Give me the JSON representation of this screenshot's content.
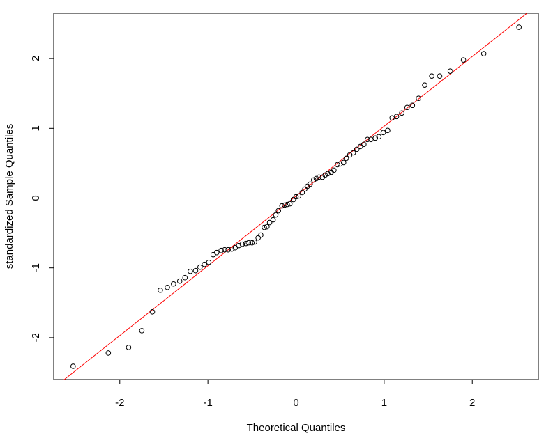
{
  "chart_data": {
    "type": "scatter",
    "title": "",
    "xlabel": "Theoretical Quantiles",
    "ylabel": "standardized Sample Quantiles",
    "xlim": [
      -2.75,
      2.75
    ],
    "ylim": [
      -2.6,
      2.65
    ],
    "x_ticks": [
      -2,
      -1,
      0,
      1,
      2
    ],
    "x_tick_labels": [
      "-2",
      "-1",
      "0",
      "1",
      "2"
    ],
    "y_ticks": [
      -2,
      -1,
      0,
      1,
      2
    ],
    "y_tick_labels": [
      "-2",
      "-1",
      "0",
      "1",
      "2"
    ],
    "grid": false,
    "legend": "none",
    "colors": {
      "points": "#000000",
      "reference_line": "#ff0000",
      "frame": "#000000"
    },
    "reference_line": {
      "intercept": 0.03,
      "slope": 1.0
    },
    "series": [
      {
        "marker": "open-circle",
        "x": [
          -2.53,
          -2.13,
          -1.9,
          -1.75,
          -1.63,
          -1.54,
          -1.46,
          -1.39,
          -1.32,
          -1.26,
          -1.2,
          -1.14,
          -1.09,
          -1.04,
          -0.99,
          -0.94,
          -0.9,
          -0.85,
          -0.81,
          -0.77,
          -0.73,
          -0.69,
          -0.65,
          -0.61,
          -0.57,
          -0.54,
          -0.5,
          -0.47,
          -0.43,
          -0.4,
          -0.36,
          -0.33,
          -0.3,
          -0.26,
          -0.23,
          -0.2,
          -0.16,
          -0.13,
          -0.1,
          -0.07,
          -0.03,
          0.0,
          0.03,
          0.07,
          0.1,
          0.13,
          0.16,
          0.2,
          0.23,
          0.26,
          0.3,
          0.33,
          0.36,
          0.4,
          0.43,
          0.47,
          0.5,
          0.54,
          0.57,
          0.61,
          0.65,
          0.69,
          0.73,
          0.77,
          0.81,
          0.85,
          0.9,
          0.94,
          0.99,
          1.04,
          1.09,
          1.14,
          1.2,
          1.26,
          1.32,
          1.39,
          1.46,
          1.54,
          1.63,
          1.75,
          1.9,
          2.13,
          2.53
        ],
        "y": [
          -2.41,
          -2.22,
          -2.14,
          -1.9,
          -1.63,
          -1.32,
          -1.28,
          -1.23,
          -1.19,
          -1.14,
          -1.05,
          -1.04,
          -0.99,
          -0.95,
          -0.92,
          -0.81,
          -0.78,
          -0.75,
          -0.74,
          -0.74,
          -0.73,
          -0.71,
          -0.68,
          -0.66,
          -0.65,
          -0.64,
          -0.64,
          -0.63,
          -0.57,
          -0.53,
          -0.42,
          -0.41,
          -0.35,
          -0.31,
          -0.24,
          -0.18,
          -0.11,
          -0.1,
          -0.09,
          -0.08,
          -0.02,
          0.02,
          0.03,
          0.08,
          0.13,
          0.17,
          0.2,
          0.26,
          0.28,
          0.3,
          0.3,
          0.33,
          0.35,
          0.37,
          0.4,
          0.48,
          0.49,
          0.51,
          0.57,
          0.62,
          0.65,
          0.7,
          0.74,
          0.77,
          0.84,
          0.84,
          0.86,
          0.88,
          0.94,
          0.97,
          1.15,
          1.17,
          1.22,
          1.3,
          1.33,
          1.43,
          1.62,
          1.75,
          1.75,
          1.82,
          1.98,
          2.07,
          2.45
        ]
      }
    ]
  }
}
